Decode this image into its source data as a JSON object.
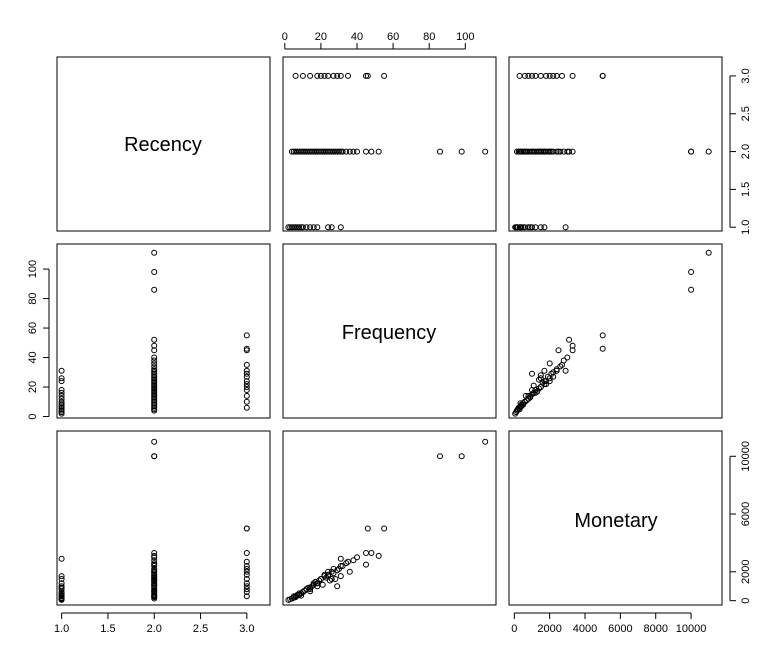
{
  "chart_data": {
    "type": "scatter",
    "variables": [
      "Recency",
      "Frequency",
      "Monetary"
    ],
    "axes": {
      "Recency": {
        "range": [
          0.95,
          3.25
        ],
        "ticks": [
          1.0,
          1.5,
          2.0,
          2.5,
          3.0
        ],
        "tick_labels": [
          "1.0",
          "1.5",
          "2.0",
          "2.5",
          "3.0"
        ]
      },
      "Frequency": {
        "range": [
          -1,
          117
        ],
        "ticks": [
          0,
          20,
          40,
          60,
          80,
          100
        ],
        "tick_labels": [
          "0",
          "20",
          "40",
          "60",
          "80",
          "100"
        ]
      },
      "Monetary": {
        "range": [
          -300,
          11750
        ],
        "ticks": [
          0,
          2000,
          4000,
          6000,
          8000,
          10000
        ],
        "tick_labels": [
          "0",
          "2000",
          "6000",
          "10000"
        ],
        "labeled_ticks": [
          0,
          2000,
          6000,
          10000
        ],
        "bottom_tick_labels": [
          "0",
          "2000",
          "4000",
          "6000",
          "8000",
          "10000"
        ]
      }
    },
    "points": [
      {
        "r": 1,
        "f": 2,
        "m": 50
      },
      {
        "r": 1,
        "f": 3,
        "m": 100
      },
      {
        "r": 1,
        "f": 4,
        "m": 150
      },
      {
        "r": 1,
        "f": 5,
        "m": 200
      },
      {
        "r": 1,
        "f": 6,
        "m": 300
      },
      {
        "r": 1,
        "f": 7,
        "m": 350
      },
      {
        "r": 1,
        "f": 8,
        "m": 400
      },
      {
        "r": 1,
        "f": 9,
        "m": 500
      },
      {
        "r": 1,
        "f": 10,
        "m": 600
      },
      {
        "r": 1,
        "f": 12,
        "m": 800
      },
      {
        "r": 1,
        "f": 14,
        "m": 900
      },
      {
        "r": 1,
        "f": 16,
        "m": 1200
      },
      {
        "r": 1,
        "f": 18,
        "m": 1000
      },
      {
        "r": 1,
        "f": 24,
        "m": 1700
      },
      {
        "r": 1,
        "f": 26,
        "m": 1500
      },
      {
        "r": 1,
        "f": 31,
        "m": 2900
      },
      {
        "r": 2,
        "f": 4,
        "m": 150
      },
      {
        "r": 2,
        "f": 5,
        "m": 300
      },
      {
        "r": 2,
        "f": 6,
        "m": 250
      },
      {
        "r": 2,
        "f": 7,
        "m": 400
      },
      {
        "r": 2,
        "f": 8,
        "m": 500
      },
      {
        "r": 2,
        "f": 9,
        "m": 350
      },
      {
        "r": 2,
        "f": 10,
        "m": 600
      },
      {
        "r": 2,
        "f": 11,
        "m": 700
      },
      {
        "r": 2,
        "f": 12,
        "m": 800
      },
      {
        "r": 2,
        "f": 13,
        "m": 900
      },
      {
        "r": 2,
        "f": 14,
        "m": 650
      },
      {
        "r": 2,
        "f": 15,
        "m": 1000
      },
      {
        "r": 2,
        "f": 16,
        "m": 1100
      },
      {
        "r": 2,
        "f": 17,
        "m": 1300
      },
      {
        "r": 2,
        "f": 18,
        "m": 1200
      },
      {
        "r": 2,
        "f": 19,
        "m": 1400
      },
      {
        "r": 2,
        "f": 20,
        "m": 1500
      },
      {
        "r": 2,
        "f": 21,
        "m": 1100
      },
      {
        "r": 2,
        "f": 22,
        "m": 1700
      },
      {
        "r": 2,
        "f": 23,
        "m": 1600
      },
      {
        "r": 2,
        "f": 24,
        "m": 1800
      },
      {
        "r": 2,
        "f": 25,
        "m": 1400
      },
      {
        "r": 2,
        "f": 26,
        "m": 2000
      },
      {
        "r": 2,
        "f": 27,
        "m": 1900
      },
      {
        "r": 2,
        "f": 28,
        "m": 1500
      },
      {
        "r": 2,
        "f": 29,
        "m": 2100
      },
      {
        "r": 2,
        "f": 30,
        "m": 2200
      },
      {
        "r": 2,
        "f": 31,
        "m": 1700
      },
      {
        "r": 2,
        "f": 32,
        "m": 2400
      },
      {
        "r": 2,
        "f": 34,
        "m": 2600
      },
      {
        "r": 2,
        "f": 36,
        "m": 2000
      },
      {
        "r": 2,
        "f": 38,
        "m": 2800
      },
      {
        "r": 2,
        "f": 40,
        "m": 3000
      },
      {
        "r": 2,
        "f": 45,
        "m": 2500
      },
      {
        "r": 2,
        "f": 48,
        "m": 3300
      },
      {
        "r": 2,
        "f": 52,
        "m": 3100
      },
      {
        "r": 2,
        "f": 86,
        "m": 10000
      },
      {
        "r": 2,
        "f": 98,
        "m": 10000
      },
      {
        "r": 2,
        "f": 111,
        "m": 11000
      },
      {
        "r": 3,
        "f": 6,
        "m": 300
      },
      {
        "r": 3,
        "f": 10,
        "m": 600
      },
      {
        "r": 3,
        "f": 14,
        "m": 800
      },
      {
        "r": 3,
        "f": 18,
        "m": 1200
      },
      {
        "r": 3,
        "f": 20,
        "m": 1500
      },
      {
        "r": 3,
        "f": 22,
        "m": 1800
      },
      {
        "r": 3,
        "f": 24,
        "m": 2000
      },
      {
        "r": 3,
        "f": 27,
        "m": 2200
      },
      {
        "r": 3,
        "f": 29,
        "m": 1000
      },
      {
        "r": 3,
        "f": 31,
        "m": 2400
      },
      {
        "r": 3,
        "f": 35,
        "m": 2700
      },
      {
        "r": 3,
        "f": 45,
        "m": 3300
      },
      {
        "r": 3,
        "f": 55,
        "m": 5000
      },
      {
        "r": 3,
        "f": 46,
        "m": 5000
      }
    ]
  }
}
